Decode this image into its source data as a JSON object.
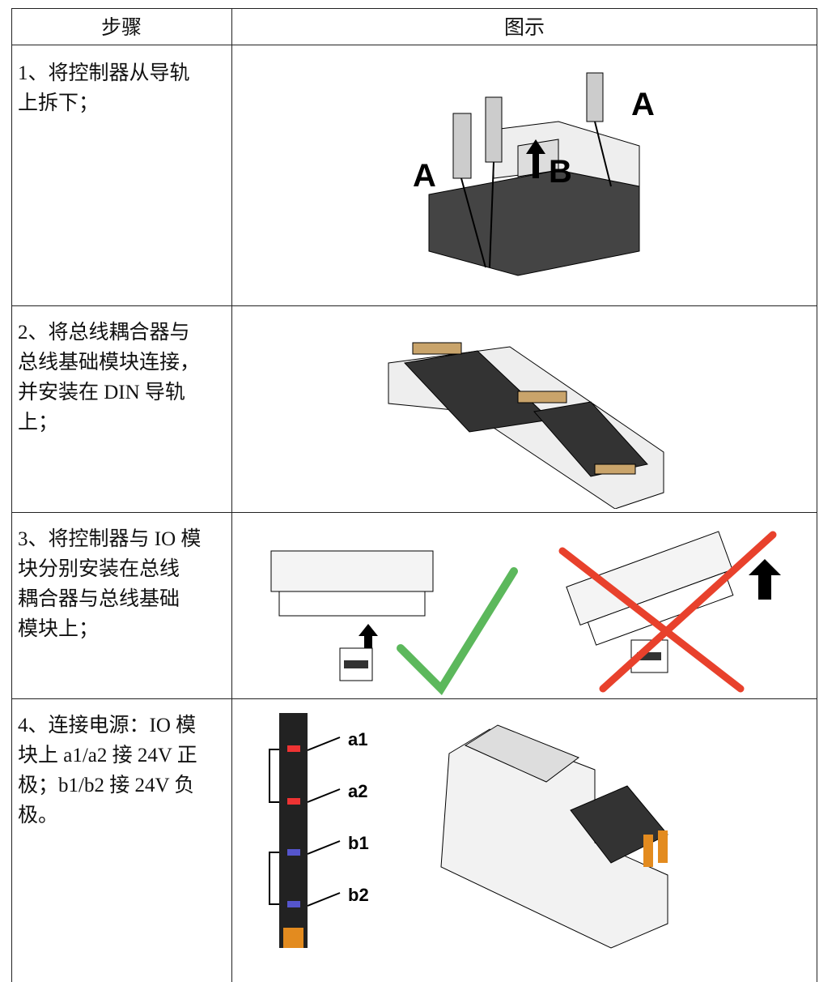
{
  "table": {
    "header": [
      "步骤",
      "图示"
    ],
    "rows": [
      {
        "step": [
          "1、将控制器从导轨",
          "上拆下；"
        ],
        "figure_labels": [
          "A",
          "B",
          "A"
        ]
      },
      {
        "step": [
          "2、将总线耦合器与",
          "总线基础模块连接，",
          "并安装在 DIN 导轨",
          "上；"
        ]
      },
      {
        "step": [
          "3、将控制器与 IO 模",
          "块分别安装在总线",
          "耦合器与总线基础",
          "模块上；"
        ]
      },
      {
        "step": [
          "4、连接电源：IO 模",
          "块上 a1/a2 接 24V 正",
          "极；b1/b2 接 24V 负",
          "极。"
        ],
        "figure_labels": [
          "a1",
          "a2",
          "b1",
          "b2"
        ]
      }
    ]
  }
}
